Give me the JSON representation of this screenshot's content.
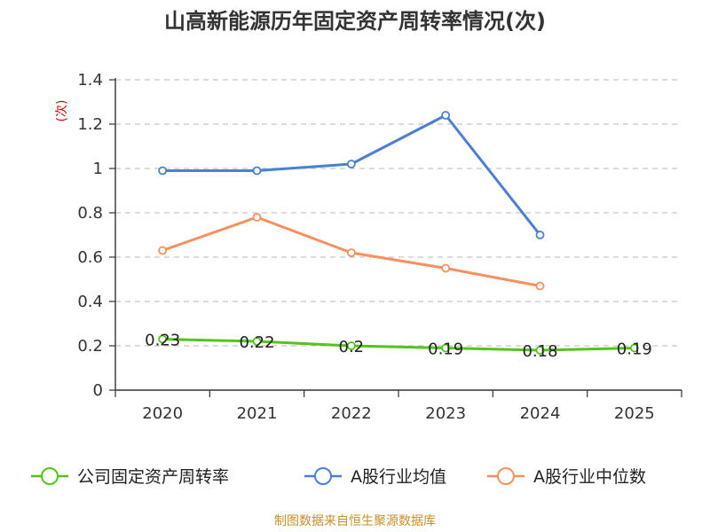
{
  "title": "山高新能源历年固定资产周转率情况(次)",
  "source": "制图数据来自恒生聚源数据库",
  "chart_data": {
    "type": "line",
    "title": "山高新能源历年固定资产周转率情况(次)",
    "xlabel": "",
    "ylabel": "(次)",
    "ylim": [
      0,
      1.4
    ],
    "yticks": [
      0,
      0.2,
      0.4,
      0.6,
      0.8,
      1,
      1.2,
      1.4
    ],
    "ytick_labels": [
      "0",
      "0.2",
      "0.4",
      "0.6",
      "0.8",
      "1",
      "1.2",
      "1.4"
    ],
    "categories": [
      "2020",
      "2021",
      "2022",
      "2023",
      "2024",
      "2025"
    ],
    "grid": true,
    "legend_position": "bottom",
    "series": [
      {
        "name": "公司固定资产周转率",
        "color": "#52c41a",
        "values": [
          0.23,
          0.22,
          0.2,
          0.19,
          0.18,
          0.19
        ],
        "labels": [
          "0.23",
          "0.22",
          "0.2",
          "0.19",
          "0.18",
          "0.19"
        ]
      },
      {
        "name": "A股行业均值",
        "color": "#4a7fd6",
        "values": [
          0.99,
          0.99,
          1.02,
          1.24,
          0.7,
          null
        ]
      },
      {
        "name": "A股行业中位数",
        "color": "#f98f5c",
        "values": [
          0.63,
          0.78,
          0.62,
          0.55,
          0.47,
          null
        ]
      }
    ]
  }
}
